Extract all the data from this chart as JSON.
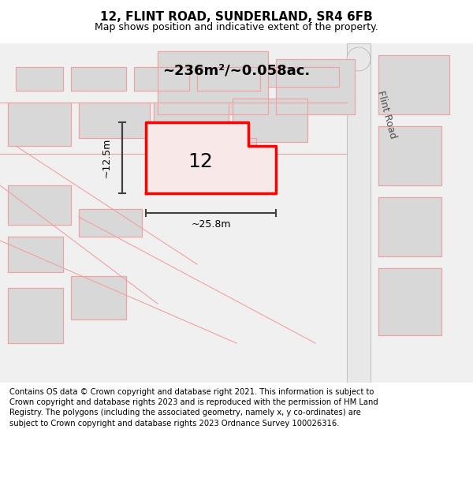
{
  "title_line1": "12, FLINT ROAD, SUNDERLAND, SR4 6FB",
  "title_line2": "Map shows position and indicative extent of the property.",
  "area_label": "~236m²/~0.058ac.",
  "property_number": "12",
  "dim_width": "~25.8m",
  "dim_height": "~12.5m",
  "road_label": "Flint Road",
  "footer": "Contains OS data © Crown copyright and database right 2021. This information is subject to Crown copyright and database rights 2023 and is reproduced with the permission of HM Land Registry. The polygons (including the associated geometry, namely x, y co-ordinates) are subject to Crown copyright and database rights 2023 Ordnance Survey 100026316.",
  "bg_color": "#f5f5f5",
  "map_bg": "#ffffff",
  "plot_outline_color": "#f5a0a0",
  "highlight_color": "#ff0000",
  "dim_color": "#404040",
  "title_bg": "#ffffff",
  "footer_bg": "#ffffff",
  "gray_road_color": "#c0c0c0"
}
